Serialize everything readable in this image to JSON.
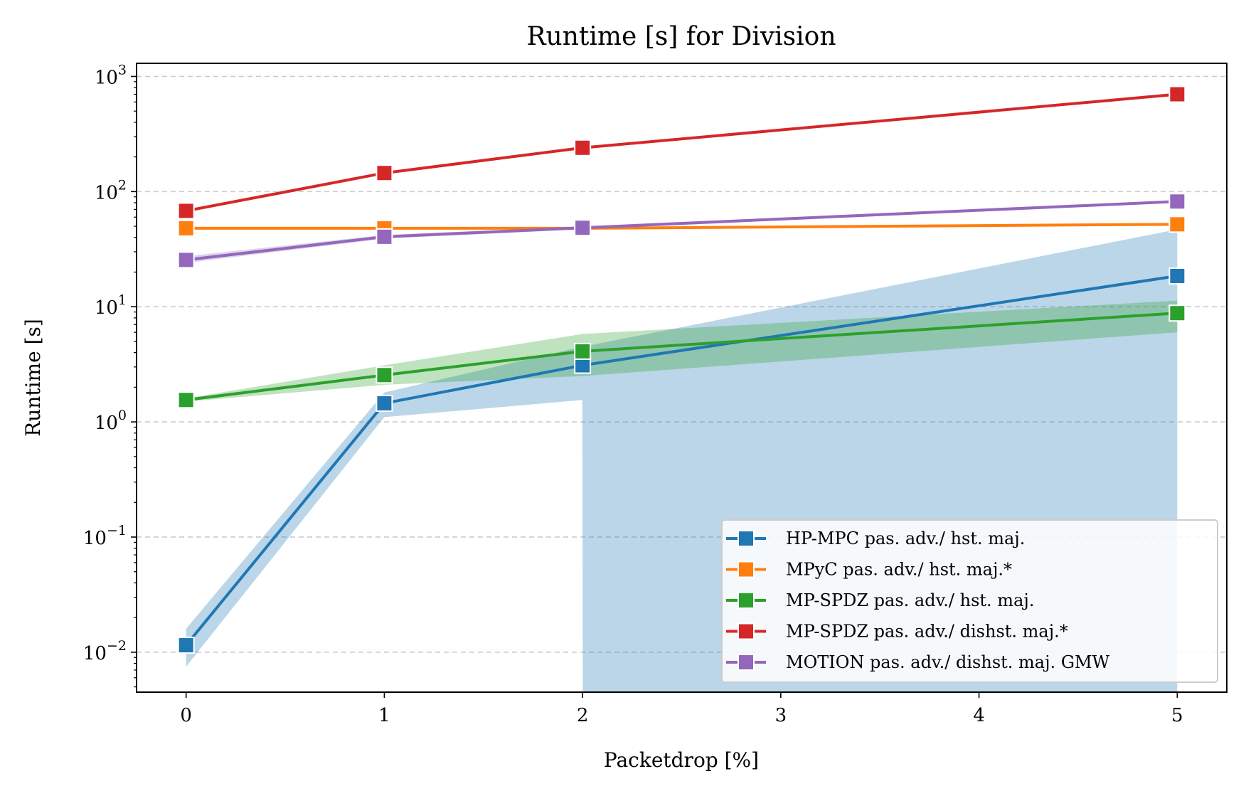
{
  "chart_data": {
    "type": "line",
    "title": "Runtime [s] for Division",
    "xlabel": "Packetdrop [%]",
    "ylabel": "Runtime [s]",
    "yscale": "log",
    "xlim": [
      -0.25,
      5.25
    ],
    "ylim": [
      0.0045,
      1300
    ],
    "xticks": [
      0,
      1,
      2,
      3,
      4,
      5
    ],
    "yticks": [
      {
        "value": 0.01,
        "base": "10",
        "exp": "−2"
      },
      {
        "value": 0.1,
        "base": "10",
        "exp": "−1"
      },
      {
        "value": 1,
        "base": "10",
        "exp": "0"
      },
      {
        "value": 10,
        "base": "10",
        "exp": "1"
      },
      {
        "value": 100,
        "base": "10",
        "exp": "2"
      },
      {
        "value": 1000,
        "base": "10",
        "exp": "3"
      }
    ],
    "grid": "y-dashed",
    "legend_position": "lower-right",
    "series": [
      {
        "name": "HP-MPC pas. adv./ hst. maj.",
        "color": "#1f77b4",
        "x": [
          0,
          1,
          2,
          5
        ],
        "y": [
          0.0115,
          1.45,
          3.1,
          18.5
        ],
        "band": {
          "x": [
            0,
            1,
            1.999,
            2.001,
            5
          ],
          "lower": [
            0.0075,
            1.1,
            1.55,
            0.0045,
            0.0045
          ],
          "upper": [
            0.016,
            1.8,
            4.5,
            4.5,
            47
          ]
        }
      },
      {
        "name": "MPyC pas. adv./ hst. maj.*",
        "color": "#ff7f0e",
        "x": [
          0,
          1,
          2,
          5
        ],
        "y": [
          48,
          48,
          48,
          52
        ],
        "band": {
          "x": [
            0,
            1,
            2,
            5
          ],
          "lower": [
            47,
            47,
            47,
            51
          ],
          "upper": [
            49,
            49,
            49,
            53
          ]
        }
      },
      {
        "name": "MP-SPDZ pas. adv./ hst. maj.",
        "color": "#2ca02c",
        "x": [
          0,
          1,
          2,
          5
        ],
        "y": [
          1.55,
          2.55,
          4.1,
          8.8
        ],
        "band": {
          "x": [
            0,
            1,
            2,
            5
          ],
          "lower": [
            1.5,
            2.1,
            2.5,
            6.0
          ],
          "upper": [
            1.6,
            3.1,
            5.8,
            11.3
          ]
        }
      },
      {
        "name": "MP-SPDZ pas. adv./ dishst. maj.*",
        "color": "#d62728",
        "x": [
          0,
          1,
          2,
          5
        ],
        "y": [
          68,
          145,
          240,
          700
        ],
        "band": {
          "x": [
            0,
            1,
            2,
            5
          ],
          "lower": [
            66,
            142,
            236,
            690
          ],
          "upper": [
            70,
            148,
            244,
            710
          ]
        }
      },
      {
        "name": "MOTION pas. adv./ dishst. maj. GMW",
        "color": "#9467bd",
        "x": [
          0,
          1,
          2,
          5
        ],
        "y": [
          25.5,
          40.5,
          48.5,
          82
        ],
        "band": {
          "x": [
            0,
            1,
            2,
            5
          ],
          "lower": [
            24,
            39,
            47,
            80
          ],
          "upper": [
            27.5,
            42,
            50,
            84
          ]
        }
      }
    ]
  }
}
